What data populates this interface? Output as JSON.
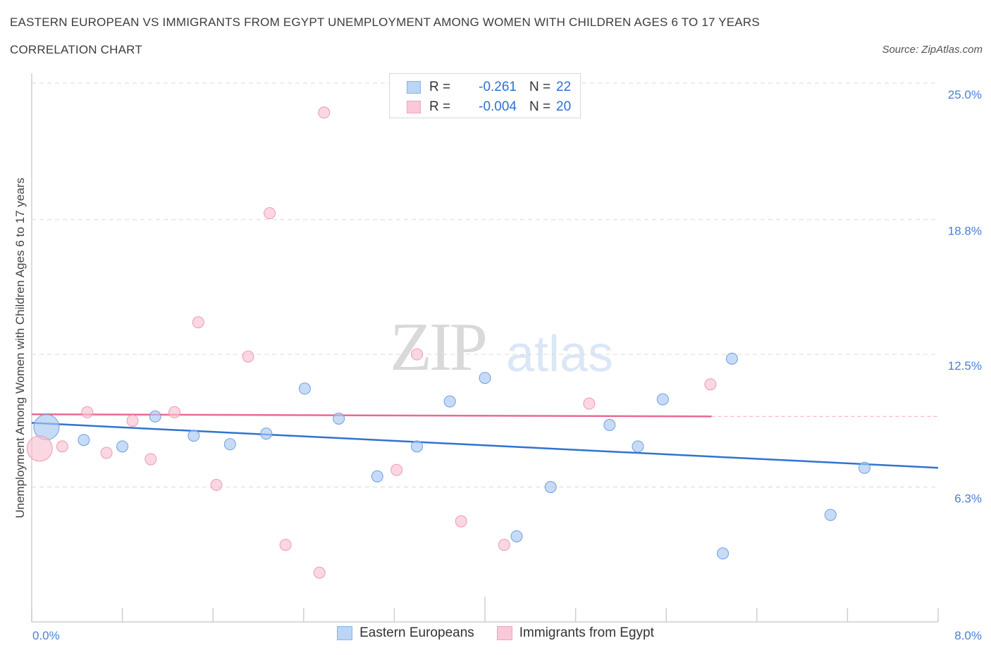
{
  "title": "EASTERN EUROPEAN VS IMMIGRANTS FROM EGYPT UNEMPLOYMENT AMONG WOMEN WITH CHILDREN AGES 6 TO 17 YEARS",
  "subtitle": "CORRELATION CHART",
  "source": "Source: ZipAtlas.com",
  "watermark": {
    "zip": "ZIP",
    "atlas": "atlas"
  },
  "legend": {
    "rows": [
      {
        "r_label": "R =",
        "r_value": "-0.261",
        "n_label": "N =",
        "n_value": "22",
        "color": "#a9c8f2"
      },
      {
        "r_label": "R =",
        "r_value": "-0.004",
        "n_label": "N =",
        "n_value": "20",
        "color": "#f5b8ca"
      }
    ]
  },
  "bottom_legend": [
    {
      "label": "Eastern Europeans",
      "color": "#a9c8f2"
    },
    {
      "label": "Immigrants from Egypt",
      "color": "#f5b8ca"
    }
  ],
  "colors": {
    "blue_fill": "#a9c8f2",
    "blue_stroke": "#6d9fe0",
    "blue_line": "#2f74d0",
    "pink_fill": "#f7c1d1",
    "pink_stroke": "#ee9ab3",
    "pink_line": "#ea6a91",
    "axis_text": "#4a7fd4",
    "grid": "#d9d9d9"
  },
  "chart_data": {
    "type": "scatter",
    "title": "EASTERN EUROPEAN VS IMMIGRANTS FROM EGYPT UNEMPLOYMENT AMONG WOMEN WITH CHILDREN AGES 6 TO 17 YEARS",
    "xlabel": "",
    "ylabel": "Unemployment Among Women with Children Ages 6 to 17 years",
    "xlim": [
      0,
      8
    ],
    "ylim": [
      0,
      25
    ],
    "x_tick_labels": [
      "0.0%",
      "8.0%"
    ],
    "y_tick_values": [
      6.3,
      12.5,
      18.8,
      25.0
    ],
    "y_tick_labels": [
      "6.3%",
      "12.5%",
      "18.8%",
      "25.0%"
    ],
    "grid": "horizontal dashed",
    "legend_position": "top-center",
    "series": [
      {
        "name": "Eastern Europeans",
        "points": [
          {
            "x": 0.13,
            "y": 9.1,
            "size": "large"
          },
          {
            "x": 0.46,
            "y": 8.5
          },
          {
            "x": 0.8,
            "y": 8.2
          },
          {
            "x": 1.09,
            "y": 9.6
          },
          {
            "x": 1.43,
            "y": 8.7
          },
          {
            "x": 1.75,
            "y": 8.3
          },
          {
            "x": 2.07,
            "y": 8.8
          },
          {
            "x": 2.41,
            "y": 10.9
          },
          {
            "x": 2.71,
            "y": 9.5
          },
          {
            "x": 3.05,
            "y": 6.8
          },
          {
            "x": 3.4,
            "y": 8.2
          },
          {
            "x": 3.69,
            "y": 10.3
          },
          {
            "x": 4.0,
            "y": 11.4
          },
          {
            "x": 4.28,
            "y": 4.0
          },
          {
            "x": 4.58,
            "y": 6.3
          },
          {
            "x": 5.1,
            "y": 9.2
          },
          {
            "x": 5.35,
            "y": 8.2
          },
          {
            "x": 5.57,
            "y": 10.4
          },
          {
            "x": 6.1,
            "y": 3.2
          },
          {
            "x": 6.18,
            "y": 12.3
          },
          {
            "x": 7.05,
            "y": 5.0
          },
          {
            "x": 7.35,
            "y": 7.2
          }
        ],
        "trend": {
          "x": [
            0.0,
            8.0
          ],
          "y": [
            9.3,
            7.2
          ]
        }
      },
      {
        "name": "Immigrants from Egypt",
        "points": [
          {
            "x": 0.07,
            "y": 8.1,
            "size": "large"
          },
          {
            "x": 0.27,
            "y": 8.2
          },
          {
            "x": 0.49,
            "y": 9.8
          },
          {
            "x": 0.66,
            "y": 7.9
          },
          {
            "x": 0.89,
            "y": 9.4
          },
          {
            "x": 1.05,
            "y": 7.6
          },
          {
            "x": 1.26,
            "y": 9.8
          },
          {
            "x": 1.47,
            "y": 14.0
          },
          {
            "x": 1.63,
            "y": 6.4
          },
          {
            "x": 1.91,
            "y": 12.4
          },
          {
            "x": 2.1,
            "y": 19.1
          },
          {
            "x": 2.24,
            "y": 3.6
          },
          {
            "x": 2.54,
            "y": 2.3
          },
          {
            "x": 2.58,
            "y": 23.8
          },
          {
            "x": 3.22,
            "y": 7.1
          },
          {
            "x": 3.4,
            "y": 12.5
          },
          {
            "x": 3.79,
            "y": 4.7
          },
          {
            "x": 4.17,
            "y": 3.6
          },
          {
            "x": 4.92,
            "y": 10.2
          },
          {
            "x": 5.99,
            "y": 11.1
          }
        ],
        "trend": {
          "x": [
            0.0,
            6.0
          ],
          "y": [
            9.7,
            9.6
          ]
        },
        "trend_dashed": {
          "x": [
            6.0,
            8.0
          ],
          "y": [
            9.6,
            9.6
          ]
        }
      }
    ]
  }
}
